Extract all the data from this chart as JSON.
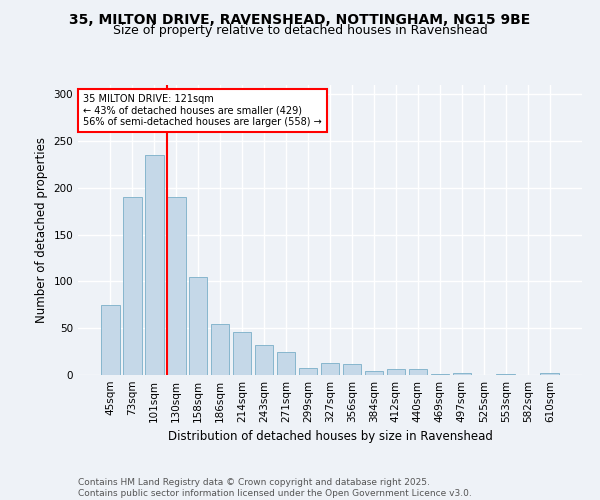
{
  "title_line1": "35, MILTON DRIVE, RAVENSHEAD, NOTTINGHAM, NG15 9BE",
  "title_line2": "Size of property relative to detached houses in Ravenshead",
  "xlabel": "Distribution of detached houses by size in Ravenshead",
  "ylabel": "Number of detached properties",
  "categories": [
    "45sqm",
    "73sqm",
    "101sqm",
    "130sqm",
    "158sqm",
    "186sqm",
    "214sqm",
    "243sqm",
    "271sqm",
    "299sqm",
    "327sqm",
    "356sqm",
    "384sqm",
    "412sqm",
    "440sqm",
    "469sqm",
    "497sqm",
    "525sqm",
    "553sqm",
    "582sqm",
    "610sqm"
  ],
  "values": [
    75,
    190,
    235,
    190,
    105,
    55,
    46,
    32,
    25,
    8,
    13,
    12,
    4,
    6,
    6,
    1,
    2,
    0,
    1,
    0,
    2
  ],
  "bar_color": "#c5d8e8",
  "bar_edge_color": "#7aafc8",
  "property_line_index": 2.575,
  "annotation_title": "35 MILTON DRIVE: 121sqm",
  "annotation_line1": "← 43% of detached houses are smaller (429)",
  "annotation_line2": "56% of semi-detached houses are larger (558) →",
  "annotation_box_facecolor": "white",
  "annotation_box_edgecolor": "red",
  "property_line_color": "red",
  "ylim": [
    0,
    310
  ],
  "yticks": [
    0,
    50,
    100,
    150,
    200,
    250,
    300
  ],
  "footer_line1": "Contains HM Land Registry data © Crown copyright and database right 2025.",
  "footer_line2": "Contains public sector information licensed under the Open Government Licence v3.0.",
  "background_color": "#eef2f7",
  "plot_bg_color": "#eef2f7",
  "grid_color": "white",
  "title_fontsize": 10,
  "subtitle_fontsize": 9,
  "axis_label_fontsize": 8.5,
  "tick_fontsize": 7.5,
  "annotation_fontsize": 7,
  "footer_fontsize": 6.5
}
